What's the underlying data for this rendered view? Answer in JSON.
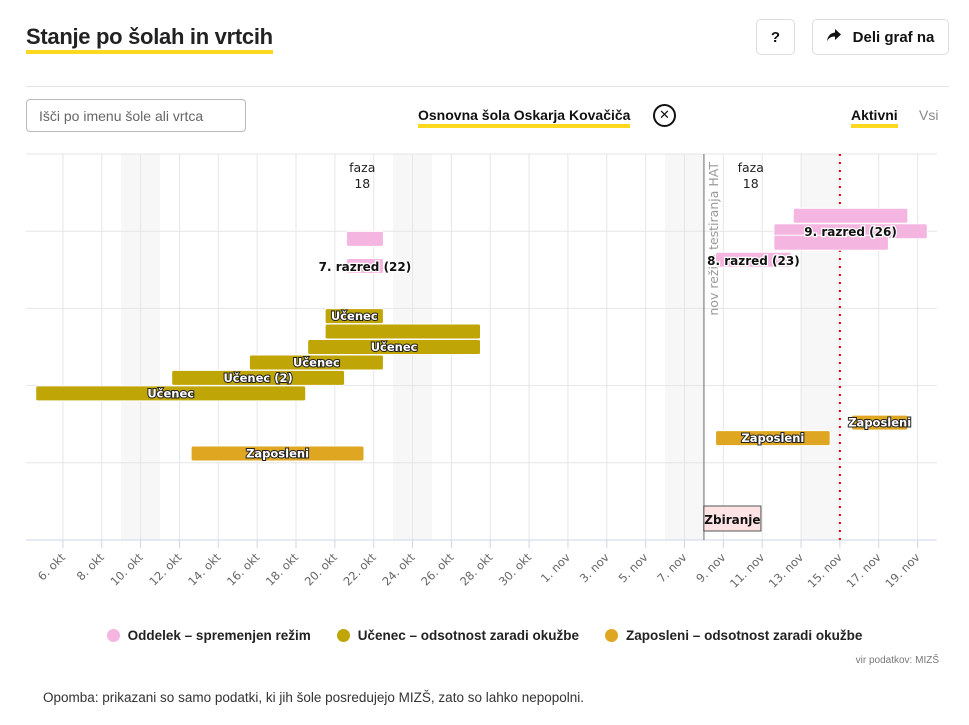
{
  "header": {
    "title": "Stanje po šolah in vrtcih",
    "help_label": "?",
    "share_label": "Deli graf na",
    "share_icon": "share-arrow-icon"
  },
  "filters": {
    "search_placeholder": "Išči po imenu šole ali vrtca",
    "search_value": "",
    "selected_school": "Osnovna šola Oskarja Kovačiča",
    "clear_icon": "close-circle-icon",
    "toggle_active": "Aktivni",
    "toggle_all": "Vsi"
  },
  "chart_data": {
    "type": "gantt",
    "title": "",
    "xlabel": "",
    "ylabel": "",
    "x_start": "2020-10-04",
    "x_end": "2020-11-20",
    "tick_dates": [
      "2020-10-06",
      "2020-10-08",
      "2020-10-10",
      "2020-10-12",
      "2020-10-14",
      "2020-10-16",
      "2020-10-18",
      "2020-10-20",
      "2020-10-22",
      "2020-10-24",
      "2020-10-26",
      "2020-10-28",
      "2020-10-30",
      "2020-11-01",
      "2020-11-03",
      "2020-11-05",
      "2020-11-07",
      "2020-11-09",
      "2020-11-11",
      "2020-11-13",
      "2020-11-15",
      "2020-11-17",
      "2020-11-19"
    ],
    "tick_labels": [
      "6. okt",
      "8. okt",
      "10. okt",
      "12. okt",
      "14. okt",
      "16. okt",
      "18. okt",
      "20. okt",
      "22. okt",
      "24. okt",
      "26. okt",
      "28. okt",
      "30. okt",
      "1. nov",
      "3. nov",
      "5. nov",
      "7. nov",
      "9. nov",
      "11. nov",
      "13. nov",
      "15. nov",
      "17. nov",
      "19. nov"
    ],
    "weekend_bands": [
      [
        "2020-10-09",
        "2020-10-11"
      ],
      [
        "2020-10-23",
        "2020-10-25"
      ],
      [
        "2020-11-06",
        "2020-11-08"
      ],
      [
        "2020-11-13",
        "2020-11-15"
      ]
    ],
    "phase_labels": [
      {
        "date": "2020-10-21",
        "line1": "faza",
        "line2": "18"
      },
      {
        "date": "2020-11-10",
        "line1": "faza",
        "line2": "18"
      }
    ],
    "markers": [
      {
        "date": "2020-11-08",
        "label": "nov režim testiranja HAT",
        "style": "solid-gray"
      },
      {
        "date": "2020-11-15",
        "label": "",
        "style": "dotted-red"
      }
    ],
    "annotation_box": {
      "date": "2020-11-08",
      "label": "Zbiranje"
    },
    "lanes": 5,
    "series": [
      {
        "name": "Oddelek – spremenjen režim",
        "color": "#f4b6e0",
        "key": "oddelek"
      },
      {
        "name": "Učenec – odsotnost zaradi okužbe",
        "color": "#bfa505",
        "key": "ucenec"
      },
      {
        "name": "Zaposleni – odsotnost zaradi okužbe",
        "color": "#dfa622",
        "key": "zaposleni"
      }
    ],
    "bars": [
      {
        "series": "oddelek",
        "lane": 1,
        "slot": 0.1,
        "start": "2020-10-20.6",
        "end": "2020-10-22.5",
        "label": ""
      },
      {
        "series": "oddelek",
        "lane": 1,
        "slot": 0.45,
        "start": "2020-10-20.6",
        "end": "2020-10-22.5",
        "label": "7. razred (22)"
      },
      {
        "series": "oddelek",
        "lane": 0,
        "slot": 0.5,
        "start": "2020-10-01",
        "end": "2020-10-01",
        "label": "",
        "hidden": true
      },
      {
        "series": "oddelek",
        "lane": 0,
        "slot": 0.8,
        "start": "2020-11-12.6",
        "end": "2020-11-18.5",
        "label": ""
      },
      {
        "series": "oddelek",
        "lane": 0,
        "slot": 1.0,
        "start": "2020-11-11.6",
        "end": "2020-11-19.5",
        "label": "9. razred (26)"
      },
      {
        "series": "oddelek",
        "lane": 1,
        "slot": 0.15,
        "start": "2020-11-11.6",
        "end": "2020-11-17.5",
        "label": ""
      },
      {
        "series": "oddelek",
        "lane": 1,
        "slot": 0.37,
        "start": "2020-11-08.6",
        "end": "2020-11-12.5",
        "label": "8. razred (23)"
      },
      {
        "series": "ucenec",
        "lane": 2,
        "slot": 0.1,
        "start": "2020-10-19.5",
        "end": "2020-10-22.5",
        "label": "Učenec"
      },
      {
        "series": "ucenec",
        "lane": 2,
        "slot": 0.3,
        "start": "2020-10-19.5",
        "end": "2020-10-27.5",
        "label": ""
      },
      {
        "series": "ucenec",
        "lane": 2,
        "slot": 0.5,
        "start": "2020-10-18.6",
        "end": "2020-10-27.5",
        "label": "Učenec"
      },
      {
        "series": "ucenec",
        "lane": 2,
        "slot": 0.7,
        "start": "2020-10-15.6",
        "end": "2020-10-22.5",
        "label": "Učenec"
      },
      {
        "series": "ucenec",
        "lane": 2,
        "slot": 0.9,
        "start": "2020-10-11.6",
        "end": "2020-10-20.5",
        "label": "Učenec (2)"
      },
      {
        "series": "ucenec",
        "lane": 3,
        "slot": 0.1,
        "start": "2020-10-04.6",
        "end": "2020-10-18.5",
        "label": "Učenec"
      },
      {
        "series": "zaposleni",
        "lane": 3,
        "slot": 0.88,
        "start": "2020-10-12.6",
        "end": "2020-10-21.5",
        "label": "Zaposleni"
      },
      {
        "series": "zaposleni",
        "lane": 3,
        "slot": 0.68,
        "start": "2020-11-08.6",
        "end": "2020-11-14.5",
        "label": "Zaposleni"
      },
      {
        "series": "zaposleni",
        "lane": 3,
        "slot": 0.48,
        "start": "2020-11-15.6",
        "end": "2020-11-18.5",
        "label": "Zaposleni"
      }
    ]
  },
  "legend": [
    {
      "label": "Oddelek – spremenjen režim",
      "color": "#f4b6e0"
    },
    {
      "label": "Učenec – odsotnost zaradi okužbe",
      "color": "#bfa505"
    },
    {
      "label": "Zaposleni – odsotnost zaradi okužbe",
      "color": "#dfa622"
    }
  ],
  "source": "vir podatkov: MIZŠ",
  "note": "Opomba: prikazani so samo podatki, ki jih šole posredujejo MIZŠ, zato so lahko nepopolni."
}
